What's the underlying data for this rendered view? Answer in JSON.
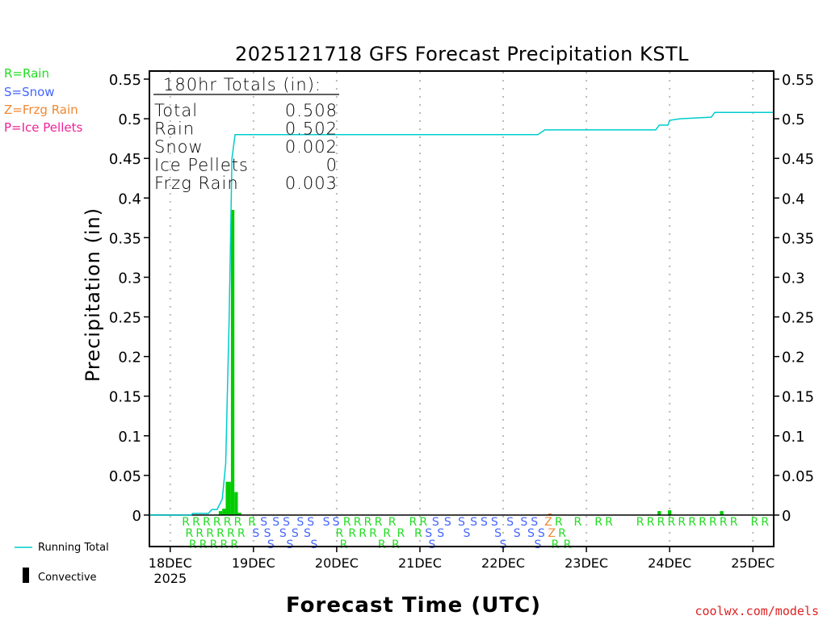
{
  "chart_data": {
    "type": "bar",
    "title": "2025121718 GFS Forecast Precipitation KSTL",
    "xlabel": "Forecast Time (UTC)",
    "ylabel": "Precipitation (in)",
    "ylim": [
      -0.04,
      0.56
    ],
    "xlim_hours": [
      0,
      180
    ],
    "yticks": [
      "0",
      "0.05",
      "0.1",
      "0.15",
      "0.2",
      "0.25",
      "0.3",
      "0.35",
      "0.4",
      "0.45",
      "0.5",
      "0.55"
    ],
    "ytick_values": [
      0,
      0.05,
      0.1,
      0.15,
      0.2,
      0.25,
      0.3,
      0.35,
      0.4,
      0.45,
      0.5,
      0.55
    ],
    "xticks": [
      {
        "hour": 6,
        "label": "18DEC",
        "sub": "2025"
      },
      {
        "hour": 30,
        "label": "19DEC"
      },
      {
        "hour": 54,
        "label": "20DEC"
      },
      {
        "hour": 78,
        "label": "21DEC"
      },
      {
        "hour": 102,
        "label": "22DEC"
      },
      {
        "hour": 126,
        "label": "23DEC"
      },
      {
        "hour": 150,
        "label": "24DEC"
      },
      {
        "hour": 174,
        "label": "25DEC"
      }
    ],
    "grid": "vertical dotted at day marks",
    "ptype_legend": [
      {
        "label": "R=Rain",
        "color": "#22dd22"
      },
      {
        "label": "S=Snow",
        "color": "#4466ff"
      },
      {
        "label": "Z=Frzg Rain",
        "color": "#ee8833"
      },
      {
        "label": "P=Ice Pellets",
        "color": "#ee2299"
      }
    ],
    "totals": {
      "heading": "180hr Totals (in):",
      "rows": [
        {
          "label": "Total",
          "value": "0.508"
        },
        {
          "label": "Rain",
          "value": "0.502"
        },
        {
          "label": "Snow",
          "value": "0.002"
        },
        {
          "label": "Ice Pellets",
          "value": "0"
        },
        {
          "label": "Frzg Rain",
          "value": "0.003"
        }
      ]
    },
    "bars": [
      {
        "start": 20,
        "end": 21,
        "value": 0.005,
        "color": "#00cc00"
      },
      {
        "start": 21,
        "end": 22,
        "value": 0.008,
        "color": "#00cc00"
      },
      {
        "start": 22,
        "end": 23.5,
        "value": 0.042,
        "color": "#00cc00"
      },
      {
        "start": 23.5,
        "end": 24.5,
        "value": 0.385,
        "color": "#00cc00"
      },
      {
        "start": 24.5,
        "end": 25.5,
        "value": 0.029,
        "color": "#00cc00"
      },
      {
        "start": 25.5,
        "end": 26.5,
        "value": 0.003,
        "color": "#00cc00"
      },
      {
        "start": 115,
        "end": 116,
        "value": 0.002,
        "color": "#ee8833"
      },
      {
        "start": 146.5,
        "end": 147.5,
        "value": 0.005,
        "color": "#00cc00"
      },
      {
        "start": 149.5,
        "end": 150.5,
        "value": 0.006,
        "color": "#00cc00"
      },
      {
        "start": 164.5,
        "end": 165.5,
        "value": 0.005,
        "color": "#00cc00"
      }
    ],
    "running_total": {
      "label": "Running Total",
      "color": "#00cccc",
      "points": [
        [
          0,
          0
        ],
        [
          12,
          0
        ],
        [
          12.5,
          0.002
        ],
        [
          17,
          0.002
        ],
        [
          18,
          0.007
        ],
        [
          19.5,
          0.007
        ],
        [
          21,
          0.02
        ],
        [
          22,
          0.065
        ],
        [
          23,
          0.25
        ],
        [
          23.8,
          0.45
        ],
        [
          24.7,
          0.48
        ],
        [
          112,
          0.48
        ],
        [
          114,
          0.486
        ],
        [
          146,
          0.486
        ],
        [
          147,
          0.492
        ],
        [
          149.5,
          0.492
        ],
        [
          150,
          0.498
        ],
        [
          153,
          0.5
        ],
        [
          162,
          0.502
        ],
        [
          163,
          0.508
        ],
        [
          180,
          0.508
        ]
      ]
    },
    "convective_label": "Convective",
    "ptype_letters": [
      [
        10.5,
        "R"
      ],
      [
        11.5,
        "R"
      ],
      [
        12.5,
        "R"
      ],
      [
        13.5,
        "R"
      ],
      [
        14.5,
        "R"
      ],
      [
        15.5,
        "R"
      ],
      [
        16.5,
        "R"
      ],
      [
        17.5,
        "R"
      ],
      [
        18.5,
        "R"
      ],
      [
        19.5,
        "R"
      ],
      [
        20.5,
        "R"
      ],
      [
        21.5,
        "R"
      ],
      [
        22.5,
        "R"
      ],
      [
        23.5,
        "R"
      ],
      [
        24.5,
        "R"
      ],
      [
        25.5,
        "R"
      ],
      [
        26.5,
        "R"
      ],
      [
        29.6,
        "R"
      ],
      [
        30.7,
        "S"
      ],
      [
        33,
        "S"
      ],
      [
        34,
        "S"
      ],
      [
        35,
        "S"
      ],
      [
        36.5,
        "S"
      ],
      [
        38.5,
        "S"
      ],
      [
        39.5,
        "S"
      ],
      [
        40.5,
        "S"
      ],
      [
        42,
        "S"
      ],
      [
        43.5,
        "S"
      ],
      [
        45.5,
        "S"
      ],
      [
        46.5,
        "S"
      ],
      [
        47.5,
        "S"
      ],
      [
        51,
        "S"
      ],
      [
        53.8,
        "S"
      ],
      [
        54.8,
        "R"
      ],
      [
        56,
        "R"
      ],
      [
        57,
        "R"
      ],
      [
        58.5,
        "R"
      ],
      [
        60,
        "R"
      ],
      [
        61.5,
        "R"
      ],
      [
        63,
        "R"
      ],
      [
        64.5,
        "R"
      ],
      [
        66,
        "R"
      ],
      [
        67,
        "R"
      ],
      [
        68.5,
        "R"
      ],
      [
        70,
        "R"
      ],
      [
        71,
        "R"
      ],
      [
        72.5,
        "R"
      ],
      [
        76,
        "R"
      ],
      [
        77.5,
        "R"
      ],
      [
        79,
        "R"
      ],
      [
        80.5,
        "S"
      ],
      [
        81.5,
        "S"
      ],
      [
        82.5,
        "S"
      ],
      [
        84,
        "S"
      ],
      [
        86,
        "S"
      ],
      [
        90,
        "S"
      ],
      [
        91.5,
        "S"
      ],
      [
        93.5,
        "S"
      ],
      [
        96.5,
        "S"
      ],
      [
        99.5,
        "S"
      ],
      [
        100.5,
        "S"
      ],
      [
        102,
        "S"
      ],
      [
        104,
        "S"
      ],
      [
        106,
        "S"
      ],
      [
        108,
        "S"
      ],
      [
        110,
        "S"
      ],
      [
        111,
        "S"
      ],
      [
        112,
        "S"
      ],
      [
        113,
        "S"
      ],
      [
        115,
        "Z"
      ],
      [
        116,
        "Z"
      ],
      [
        117,
        "R"
      ],
      [
        118,
        "R"
      ],
      [
        119,
        "R"
      ],
      [
        120.5,
        "R"
      ],
      [
        123.5,
        "R"
      ],
      [
        129.5,
        "R"
      ],
      [
        132.5,
        "R"
      ],
      [
        141.5,
        "R"
      ],
      [
        144.5,
        "R"
      ],
      [
        147.5,
        "R"
      ],
      [
        150.5,
        "R"
      ],
      [
        153.5,
        "R"
      ],
      [
        156.5,
        "R"
      ],
      [
        159.5,
        "R"
      ],
      [
        162.5,
        "R"
      ],
      [
        165.5,
        "R"
      ],
      [
        168.5,
        "R"
      ],
      [
        174.5,
        "R"
      ],
      [
        177.5,
        "R"
      ]
    ],
    "credit": "coolwx.com/models"
  }
}
